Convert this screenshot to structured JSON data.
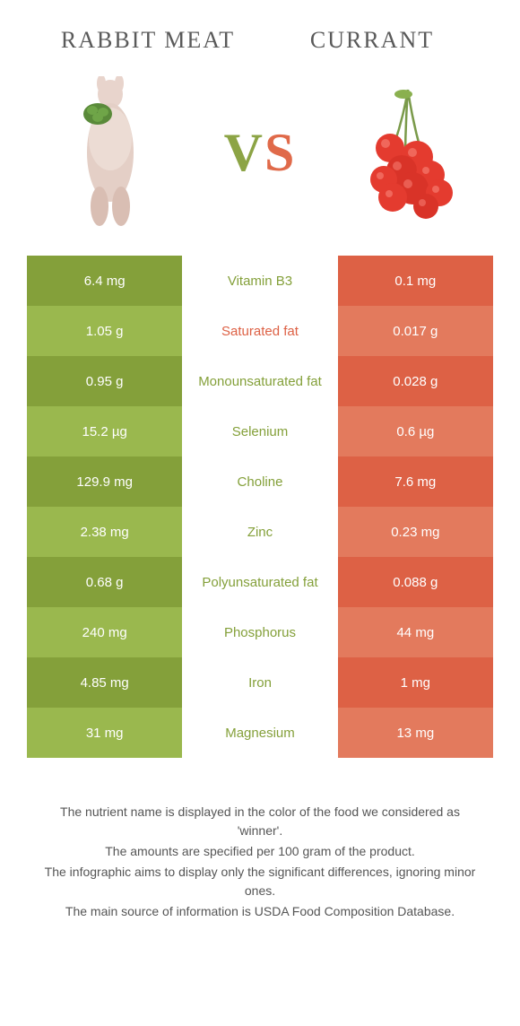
{
  "header": {
    "left_title": "Rabbit meat",
    "right_title": "Currant",
    "vs_v": "V",
    "vs_s": "S"
  },
  "colors": {
    "green_dark": "#84a03a",
    "green_light": "#9ab84e",
    "orange_dark": "#dd6145",
    "orange_light": "#e37a5d",
    "mid_green": "#84a03a",
    "mid_orange": "#dd6145",
    "text": "#555555"
  },
  "rows": [
    {
      "left": "6.4 mg",
      "mid": "Vitamin B3",
      "right": "0.1 mg",
      "winner": "left"
    },
    {
      "left": "1.05 g",
      "mid": "Saturated fat",
      "right": "0.017 g",
      "winner": "right"
    },
    {
      "left": "0.95 g",
      "mid": "Monounsaturated fat",
      "right": "0.028 g",
      "winner": "left"
    },
    {
      "left": "15.2 µg",
      "mid": "Selenium",
      "right": "0.6 µg",
      "winner": "left"
    },
    {
      "left": "129.9 mg",
      "mid": "Choline",
      "right": "7.6 mg",
      "winner": "left"
    },
    {
      "left": "2.38 mg",
      "mid": "Zinc",
      "right": "0.23 mg",
      "winner": "left"
    },
    {
      "left": "0.68 g",
      "mid": "Polyunsaturated fat",
      "right": "0.088 g",
      "winner": "left"
    },
    {
      "left": "240 mg",
      "mid": "Phosphorus",
      "right": "44 mg",
      "winner": "left"
    },
    {
      "left": "4.85 mg",
      "mid": "Iron",
      "right": "1 mg",
      "winner": "left"
    },
    {
      "left": "31 mg",
      "mid": "Magnesium",
      "right": "13 mg",
      "winner": "left"
    }
  ],
  "footer": {
    "line1": "The nutrient name is displayed in the color of the food we considered as 'winner'.",
    "line2": "The amounts are specified per 100 gram of the product.",
    "line3": "The infographic aims to display only the significant differences, ignoring minor ones.",
    "line4": "The main source of information is USDA Food Composition Database."
  }
}
